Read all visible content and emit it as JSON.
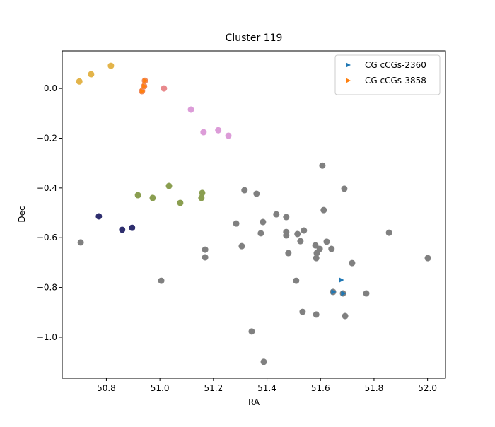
{
  "chart_data": {
    "type": "scatter",
    "title": "Cluster 119",
    "x_label": "RA",
    "y_label": "Dec",
    "xlim": [
      50.635,
      52.067
    ],
    "ylim": [
      -1.165,
      0.151
    ],
    "xticks": [
      50.8,
      {
        "value": 51,
        "label": "51.0"
      },
      51.2,
      51.4,
      51.6,
      51.8,
      {
        "value": 52,
        "label": "52.0"
      }
    ],
    "yticks": [
      {
        "value": 0,
        "label": "0.0"
      },
      {
        "value": -0.2,
        "label": "−0.2"
      },
      {
        "value": -0.4,
        "label": "−0.4"
      },
      {
        "value": -0.6,
        "label": "−0.6"
      },
      {
        "value": -0.8,
        "label": "−0.8"
      },
      {
        "value": -1,
        "label": "−1.0"
      }
    ],
    "legend": "upper right",
    "series": [
      {
        "color": "#808080",
        "marker": "circle",
        "x": [
          50.704,
          51.005,
          51.169,
          51.169,
          51.316,
          51.361,
          51.285,
          51.306,
          51.385,
          51.377,
          51.435,
          51.472,
          51.472,
          51.472,
          51.48,
          51.514,
          51.538,
          51.525,
          51.509,
          51.533,
          51.607,
          51.612,
          51.623,
          51.581,
          51.597,
          51.586,
          51.584,
          51.641,
          51.689,
          51.718,
          51.856,
          52.001,
          51.771,
          51.584,
          51.692,
          51.343,
          51.388,
          51.684,
          51.647
        ],
        "values": [
          -0.619,
          -0.773,
          -0.648,
          -0.679,
          -0.409,
          -0.423,
          -0.543,
          -0.634,
          -0.537,
          -0.582,
          -0.506,
          -0.517,
          -0.577,
          -0.591,
          -0.662,
          -0.585,
          -0.571,
          -0.614,
          -0.773,
          -0.898,
          -0.31,
          -0.489,
          -0.616,
          -0.631,
          -0.645,
          -0.662,
          -0.682,
          -0.645,
          -0.403,
          -0.702,
          -0.58,
          -0.682,
          -0.824,
          -0.909,
          -0.915,
          -0.977,
          -1.099,
          -0.824,
          -0.818
        ]
      },
      {
        "color": "#e3b44a",
        "marker": "circle",
        "x": [
          50.699,
          50.743,
          50.817
        ],
        "values": [
          0.028,
          0.057,
          0.091
        ]
      },
      {
        "color": "#f08a5d",
        "marker": "circle",
        "x": [
          50.944,
          50.941,
          50.933
        ],
        "values": [
          0.031,
          0.009,
          -0.011
        ]
      },
      {
        "color": "#e8898c",
        "marker": "circle",
        "x": [
          51.015
        ],
        "values": [
          0.0
        ]
      },
      {
        "color": "#dc9cd8",
        "marker": "circle",
        "x": [
          51.116,
          51.163,
          51.218,
          51.256
        ],
        "values": [
          -0.085,
          -0.176,
          -0.168,
          -0.19
        ]
      },
      {
        "color": "#8a9e50",
        "marker": "circle",
        "x": [
          50.918,
          50.973,
          51.034,
          51.076,
          51.158,
          51.155
        ],
        "values": [
          -0.429,
          -0.44,
          -0.392,
          -0.46,
          -0.42,
          -0.44
        ]
      },
      {
        "color": "#2e2e6e",
        "marker": "circle",
        "x": [
          50.772,
          50.859,
          50.896
        ],
        "values": [
          -0.514,
          -0.568,
          -0.56
        ]
      },
      {
        "name": "CG cCGs-2360",
        "color": "#1f77b4",
        "marker": "triangle",
        "x": [
          51.647,
          51.684,
          51.676
        ],
        "values": [
          -0.818,
          -0.824,
          -0.77
        ]
      },
      {
        "name": "CG cCGs-3858",
        "color": "#ff7f0e",
        "marker": "triangle",
        "x": [
          50.944,
          50.941,
          50.933
        ],
        "values": [
          0.031,
          0.009,
          -0.011
        ]
      }
    ]
  }
}
